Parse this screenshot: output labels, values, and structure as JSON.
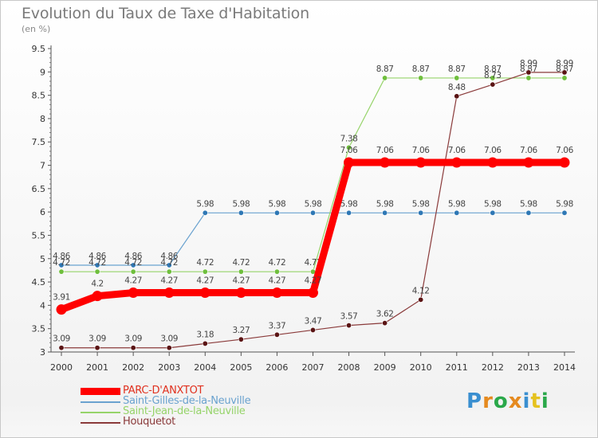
{
  "title": "Evolution du Taux de Taxe d'Habitation",
  "subtitle": "(en %)",
  "brand": {
    "letters": [
      "P",
      "r",
      "o",
      "x",
      "i",
      "t",
      "i"
    ],
    "colors": [
      "#3a8fd0",
      "#e58a1f",
      "#2aa84a",
      "#e58a1f",
      "#3a8fd0",
      "#e5c21f",
      "#2aa84a"
    ]
  },
  "chart_data": {
    "type": "line",
    "x": [
      "2000",
      "2001",
      "2002",
      "2003",
      "2004",
      "2005",
      "2006",
      "2007",
      "2008",
      "2009",
      "2010",
      "2011",
      "2012",
      "2013",
      "2014"
    ],
    "ylim": [
      3,
      9.5
    ],
    "yticks": [
      "3",
      "3.5",
      "4",
      "4.5",
      "5",
      "5.5",
      "6",
      "6.5",
      "7",
      "7.5",
      "8",
      "8.5",
      "9",
      "9.5"
    ],
    "grid": false,
    "legend_position": "bottom-left",
    "series": [
      {
        "name": "Saint-Gilles-de-la-Neuville",
        "color": "#6aa2cf",
        "marker": "#2f78b5",
        "width": 1.2,
        "values": [
          4.86,
          4.86,
          4.86,
          4.86,
          5.98,
          5.98,
          5.98,
          5.98,
          5.98,
          5.98,
          5.98,
          5.98,
          5.98,
          5.98,
          5.98
        ],
        "labels": [
          "4.86",
          "4.86",
          "4.86",
          "4.86",
          "5.98",
          "5.98",
          "5.98",
          "5.98",
          "5.98",
          "5.98",
          "5.98",
          "5.98",
          "5.98",
          "5.98",
          "5.98"
        ]
      },
      {
        "name": "Saint-Jean-de-la-Neuville",
        "color": "#96d46a",
        "marker": "#6fbf3d",
        "width": 1.2,
        "values": [
          4.72,
          4.72,
          4.72,
          4.72,
          4.72,
          4.72,
          4.72,
          4.72,
          7.38,
          8.87,
          8.87,
          8.87,
          8.87,
          8.87,
          8.87
        ],
        "labels": [
          "4.72",
          "4.72",
          "4.72",
          "4.72",
          "4.72",
          "4.72",
          "4.72",
          "4.72",
          "7.38",
          "8.87",
          "8.87",
          "8.87",
          "8.87",
          "8.87",
          "8.87"
        ]
      },
      {
        "name": "Houquetot",
        "color": "#8a3a3a",
        "marker": "#5a1414",
        "width": 1.2,
        "values": [
          3.09,
          3.09,
          3.09,
          3.09,
          3.18,
          3.27,
          3.37,
          3.47,
          3.57,
          3.62,
          4.12,
          8.48,
          8.73,
          8.99,
          8.99
        ],
        "labels": [
          "3.09",
          "3.09",
          "3.09",
          "3.09",
          "3.18",
          "3.27",
          "3.37",
          "3.47",
          "3.57",
          "3.62",
          "4.12",
          "8.48",
          "8.73",
          "8.99",
          "8.99"
        ]
      },
      {
        "name": "PARC-D'ANXTOT",
        "color": "#ff0000",
        "marker": "#ff0000",
        "width": 9,
        "values": [
          3.91,
          4.2,
          4.27,
          4.27,
          4.27,
          4.27,
          4.27,
          4.27,
          7.06,
          7.06,
          7.06,
          7.06,
          7.06,
          7.06,
          7.06
        ],
        "labels": [
          "3.91",
          "4.2",
          "4.27",
          "4.27",
          "4.27",
          "4.27",
          "4.27",
          "4.27",
          "7.06",
          "7.06",
          "7.06",
          "7.06",
          "7.06",
          "7.06",
          "7.06"
        ]
      }
    ],
    "legend_order": [
      "PARC-D'ANXTOT",
      "Saint-Gilles-de-la-Neuville",
      "Saint-Jean-de-la-Neuville",
      "Houquetot"
    ]
  }
}
